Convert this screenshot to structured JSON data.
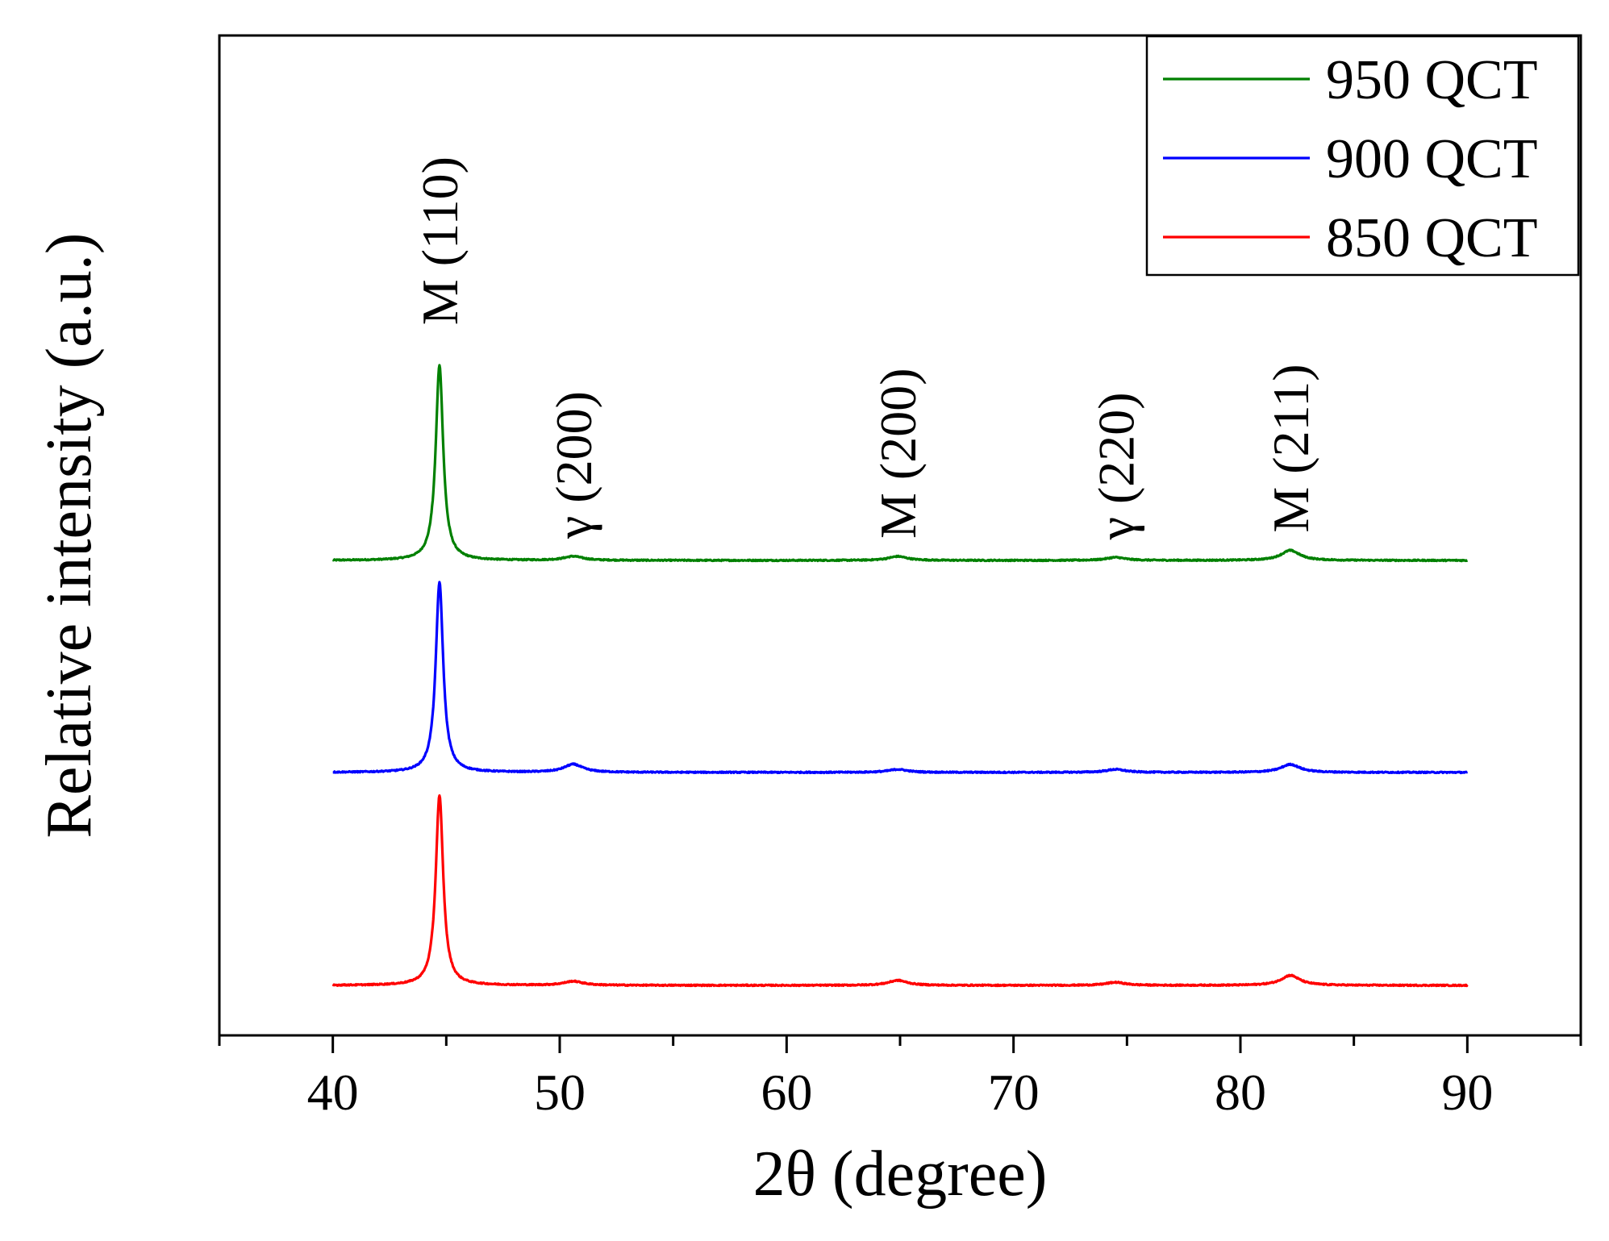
{
  "chart_data": {
    "type": "line",
    "title": "",
    "xlabel": "2θ (degree)",
    "ylabel": "Relative intensity (a.u.)",
    "xlim": [
      35,
      95
    ],
    "ylim": [
      0,
      100
    ],
    "xticks": [
      40,
      50,
      60,
      70,
      80,
      90
    ],
    "xtick_labels": [
      "40",
      "50",
      "60",
      "70",
      "80",
      "90"
    ],
    "yticks_shown": false,
    "grid": false,
    "legend_position": "top-right",
    "legend_order": [
      "950 QCT",
      "900 QCT",
      "850 QCT"
    ],
    "x_range": [
      40,
      90
    ],
    "series": [
      {
        "name": "950 QCT",
        "color": "#008000",
        "baseline": 47.5,
        "peaks": [
          {
            "two_theta": 44.7,
            "height": 19.5,
            "width": 0.2
          },
          {
            "two_theta": 50.6,
            "height": 0.4,
            "width": 0.5
          },
          {
            "two_theta": 64.9,
            "height": 0.4,
            "width": 0.5
          },
          {
            "two_theta": 74.5,
            "height": 0.3,
            "width": 0.5
          },
          {
            "two_theta": 82.2,
            "height": 1.0,
            "width": 0.5
          }
        ]
      },
      {
        "name": "900 QCT",
        "color": "#0000ff",
        "baseline": 26.3,
        "peaks": [
          {
            "two_theta": 44.7,
            "height": 19.0,
            "width": 0.2
          },
          {
            "two_theta": 50.6,
            "height": 0.8,
            "width": 0.5
          },
          {
            "two_theta": 64.9,
            "height": 0.3,
            "width": 0.5
          },
          {
            "two_theta": 74.5,
            "height": 0.3,
            "width": 0.5
          },
          {
            "two_theta": 82.2,
            "height": 0.8,
            "width": 0.5
          }
        ]
      },
      {
        "name": "850 QCT",
        "color": "#ff0000",
        "baseline": 5.0,
        "peaks": [
          {
            "two_theta": 44.7,
            "height": 19.0,
            "width": 0.2
          },
          {
            "two_theta": 50.6,
            "height": 0.4,
            "width": 0.5
          },
          {
            "two_theta": 64.9,
            "height": 0.5,
            "width": 0.5
          },
          {
            "two_theta": 74.5,
            "height": 0.3,
            "width": 0.5
          },
          {
            "two_theta": 82.2,
            "height": 1.0,
            "width": 0.5
          }
        ]
      }
    ],
    "annotations": [
      {
        "text": "M (110)",
        "two_theta": 44.7
      },
      {
        "text": "γ (200)",
        "two_theta": 50.6
      },
      {
        "text": "M (200)",
        "two_theta": 64.9
      },
      {
        "text": "γ (220)",
        "two_theta": 74.5
      },
      {
        "text": "M (211)",
        "two_theta": 82.2
      }
    ]
  }
}
